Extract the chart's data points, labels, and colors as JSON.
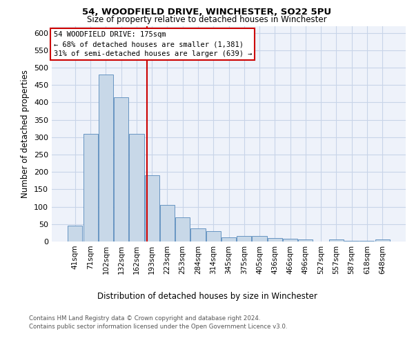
{
  "title1": "54, WOODFIELD DRIVE, WINCHESTER, SO22 5PU",
  "title2": "Size of property relative to detached houses in Winchester",
  "xlabel": "Distribution of detached houses by size in Winchester",
  "ylabel": "Number of detached properties",
  "categories": [
    "41sqm",
    "71sqm",
    "102sqm",
    "132sqm",
    "162sqm",
    "193sqm",
    "223sqm",
    "253sqm",
    "284sqm",
    "314sqm",
    "345sqm",
    "375sqm",
    "405sqm",
    "436sqm",
    "466sqm",
    "496sqm",
    "527sqm",
    "557sqm",
    "587sqm",
    "618sqm",
    "648sqm"
  ],
  "values": [
    45,
    310,
    480,
    415,
    310,
    190,
    105,
    70,
    37,
    30,
    12,
    15,
    15,
    10,
    8,
    5,
    0,
    6,
    2,
    2,
    6
  ],
  "bar_color": "#c8d8e8",
  "bar_edge_color": "#5588bb",
  "grid_color": "#c8d4e8",
  "background_color": "#eef2fa",
  "annotation_box_color": "#ffffff",
  "annotation_border_color": "#cc0000",
  "red_line_x": 4.68,
  "annotation_text_line1": "54 WOODFIELD DRIVE: 175sqm",
  "annotation_text_line2": "← 68% of detached houses are smaller (1,381)",
  "annotation_text_line3": "31% of semi-detached houses are larger (639) →",
  "ylim": [
    0,
    620
  ],
  "yticks": [
    0,
    50,
    100,
    150,
    200,
    250,
    300,
    350,
    400,
    450,
    500,
    550,
    600
  ],
  "footer1": "Contains HM Land Registry data © Crown copyright and database right 2024.",
  "footer2": "Contains public sector information licensed under the Open Government Licence v3.0."
}
